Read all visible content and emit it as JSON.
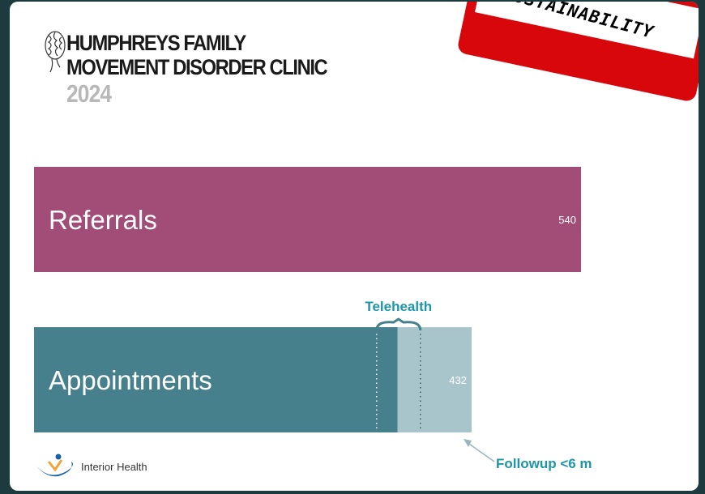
{
  "header": {
    "title_line1": "HUMPHREYS FAMILY",
    "title_line2": "MOVEMENT DISORDER CLINIC",
    "year": "2024",
    "stamp_text": "SUSTAINABILITY",
    "icon": "brain-icon"
  },
  "chart_data": {
    "type": "bar",
    "orientation": "horizontal",
    "categories": [
      "Referrals",
      "Appointments"
    ],
    "values": [
      540,
      432
    ],
    "value_labels": [
      "540",
      "432"
    ],
    "segments": {
      "Appointments": [
        {
          "label": "",
          "value": 359
        },
        {
          "label": "Followup <6 m",
          "value": 73
        }
      ]
    },
    "annotations": {
      "telehealth": "Telehealth",
      "followup": "Followup <6 m"
    },
    "colors": {
      "referrals": "#a24d78",
      "appointments": "#46808c",
      "followup": "#a9c5cc",
      "annotation": "#1c95a8",
      "annotation_arrow": "#9bb4bf"
    },
    "xlim": [
      0,
      540
    ],
    "grid": false,
    "legend": "none"
  },
  "footer": {
    "logo_text": "Interior Health",
    "logo_colors": [
      "#1560a8",
      "#f0a43a"
    ]
  }
}
